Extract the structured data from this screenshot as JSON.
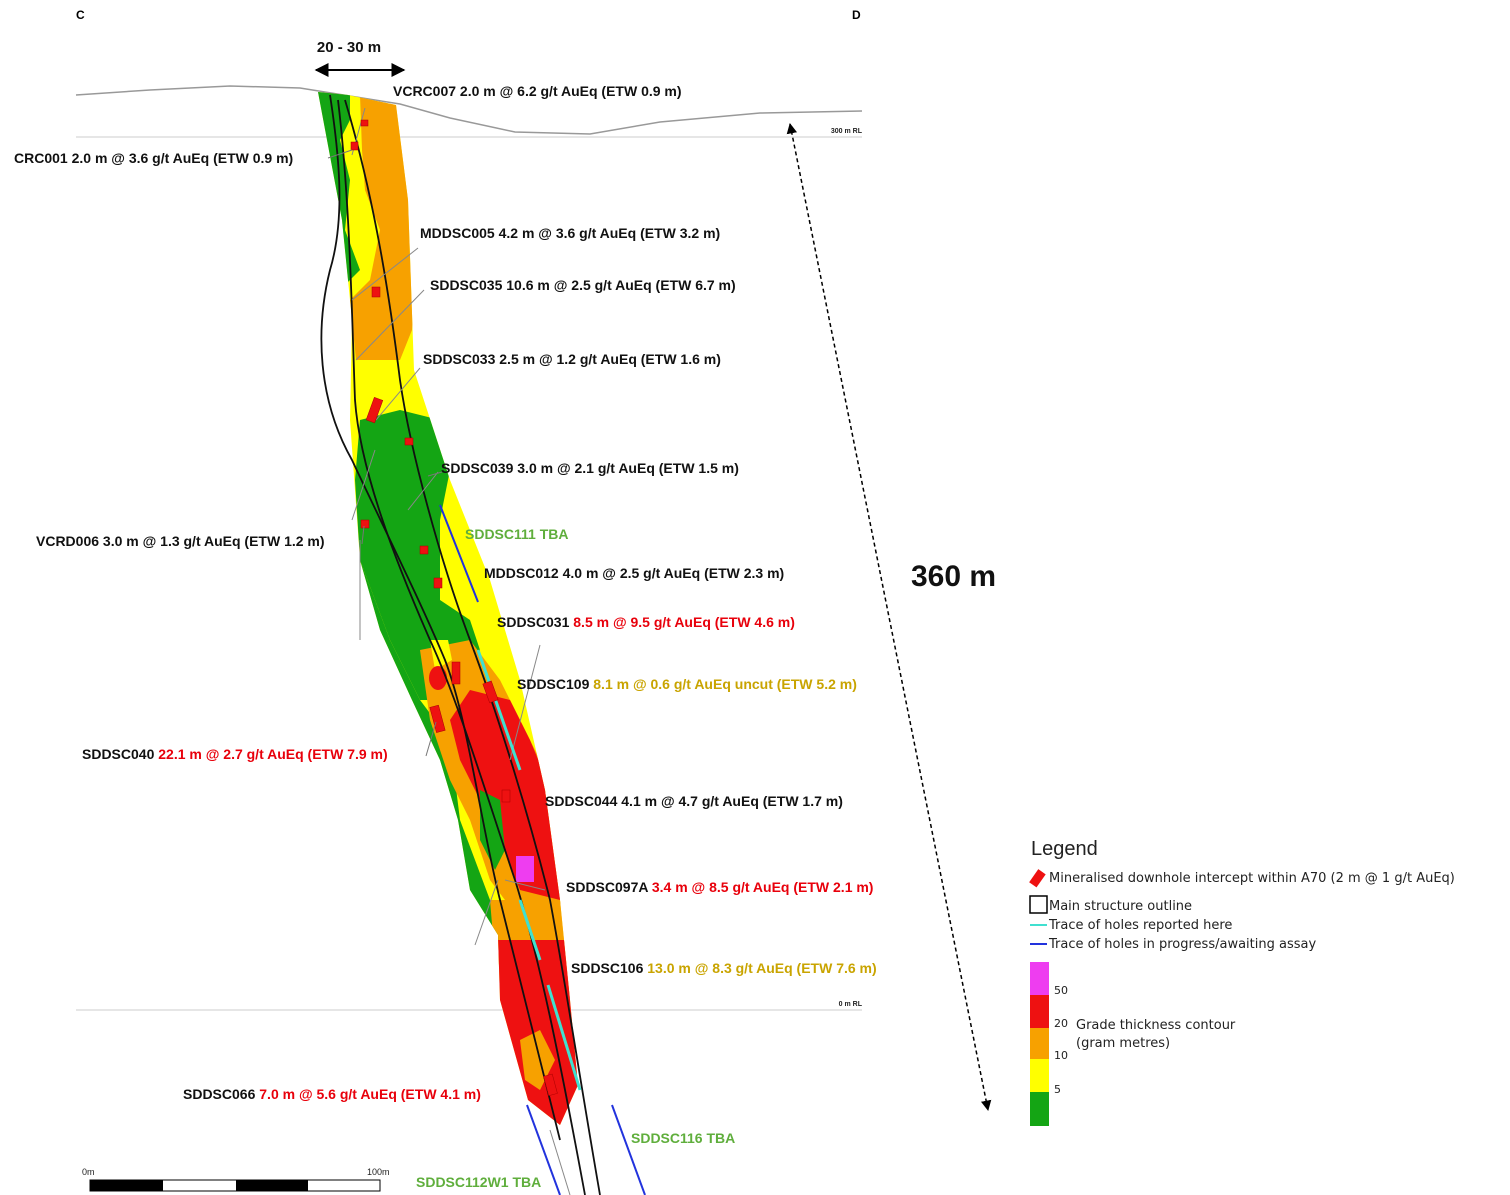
{
  "section": {
    "left_marker": "C",
    "right_marker": "D",
    "width_label": "20 - 30 m",
    "depth_label": "360 m",
    "rl_top": "300 m RL",
    "rl_bottom": "0 m RL"
  },
  "intercepts": [
    {
      "hole": "VCRC007",
      "result": "2.0 m @ 6.2 g/t AuEq (ETW 0.9 m)",
      "tone": "normal"
    },
    {
      "hole": "CRC001",
      "result": "2.0 m @ 3.6 g/t AuEq (ETW 0.9 m)",
      "tone": "normal"
    },
    {
      "hole": "MDDSC005",
      "result": "4.2 m @ 3.6 g/t AuEq (ETW 3.2 m)",
      "tone": "normal"
    },
    {
      "hole": "SDDSC035",
      "result": "10.6 m @ 2.5 g/t AuEq (ETW 6.7 m)",
      "tone": "normal"
    },
    {
      "hole": "SDDSC033",
      "result": "2.5 m @ 1.2 g/t AuEq (ETW 1.6 m)",
      "tone": "normal"
    },
    {
      "hole": "SDDSC039",
      "result": "3.0 m @ 2.1 g/t AuEq (ETW 1.5 m)",
      "tone": "normal"
    },
    {
      "hole": "VCRD006",
      "result": "3.0 m @ 1.3 g/t AuEq (ETW 1.2 m)",
      "tone": "normal"
    },
    {
      "hole": "MDDSC012",
      "result": "4.0 m @ 2.5 g/t AuEq (ETW 2.3 m)",
      "tone": "normal"
    },
    {
      "hole": "SDDSC031",
      "result": "8.5 m @ 9.5 g/t AuEq (ETW 4.6 m)",
      "tone": "red"
    },
    {
      "hole": "SDDSC109",
      "result": "8.1 m @ 0.6 g/t AuEq uncut (ETW 5.2 m)",
      "tone": "gold"
    },
    {
      "hole": "SDDSC040",
      "result": "22.1 m @ 2.7 g/t AuEq (ETW 7.9 m)",
      "tone": "red"
    },
    {
      "hole": "SDDSC044",
      "result": "4.1 m @ 4.7 g/t AuEq (ETW 1.7 m)",
      "tone": "normal"
    },
    {
      "hole": "SDDSC097A",
      "result": "3.4 m @ 8.5 g/t AuEq (ETW 2.1 m)",
      "tone": "red"
    },
    {
      "hole": "SDDSC106",
      "result": "13.0 m @ 8.3 g/t AuEq (ETW 7.6 m)",
      "tone": "gold"
    },
    {
      "hole": "SDDSC066",
      "result": "7.0 m @ 5.6 g/t AuEq (ETW 4.1 m)",
      "tone": "red"
    }
  ],
  "pending": [
    "SDDSC111 TBA",
    "SDDSC116 TBA",
    "SDDSC112W1 TBA"
  ],
  "scale_bar": {
    "start": "0m",
    "end": "100m"
  },
  "legend": {
    "title": "Legend",
    "items": [
      "Mineralised downhole intercept within A70 (2 m @ 1 g/t AuEq)",
      "Main structure outline",
      "Trace of holes reported here",
      "Trace of holes in progress/awaiting assay"
    ],
    "contour_label": "Grade thickness contour",
    "contour_units": "(gram metres)",
    "contour_ticks": [
      "50",
      "20",
      "10",
      "5"
    ]
  },
  "colors": {
    "grade_50": "#ee3df0",
    "grade_20": "#ee1111",
    "grade_10": "#f7a100",
    "grade_5": "#ffff00",
    "grade_low": "#14a514",
    "reported_trace": "#40e0d0",
    "pending_trace": "#2233dd",
    "red_text": "#e8000b",
    "gold_text": "#c9a400",
    "green_text": "#5fae3c"
  }
}
